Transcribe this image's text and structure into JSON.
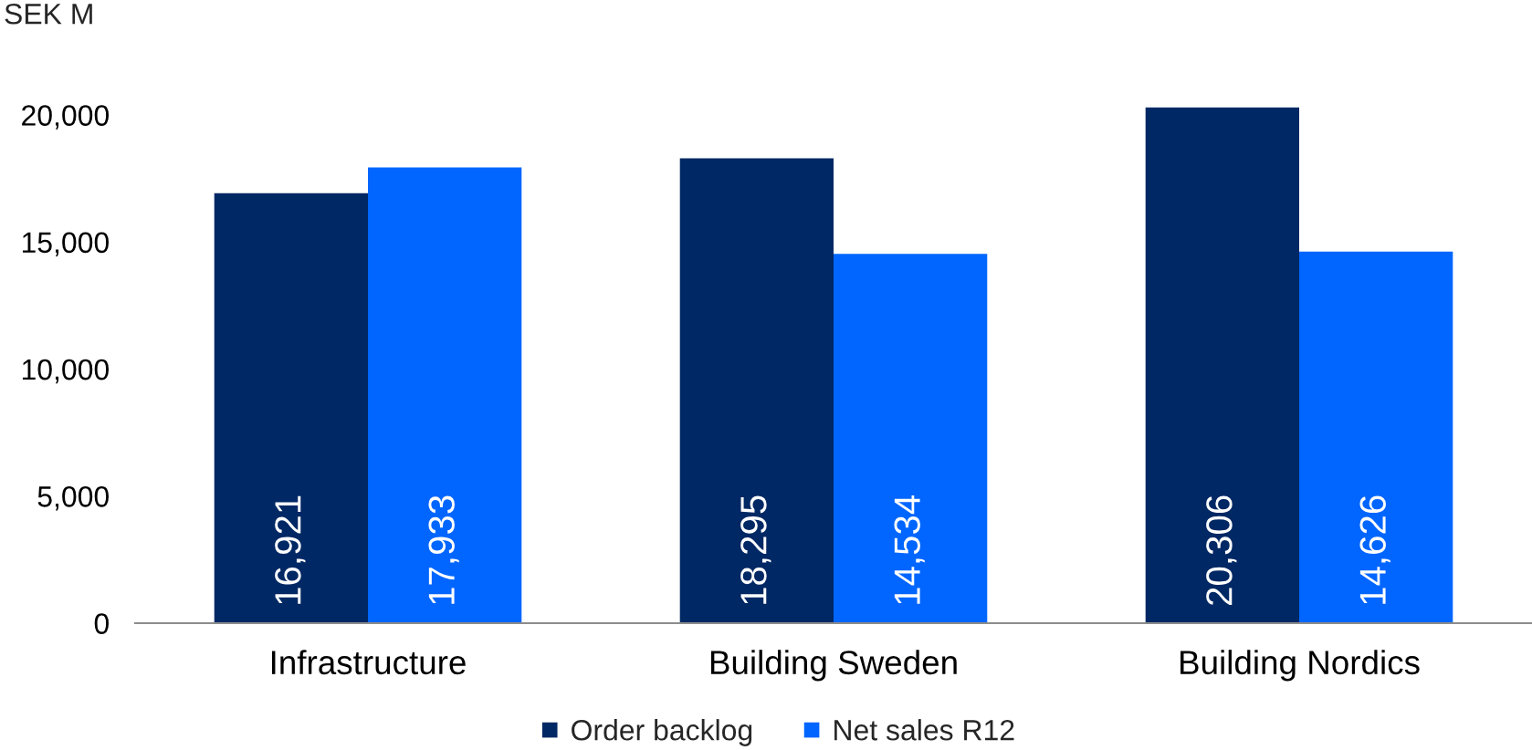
{
  "chart_data": {
    "type": "bar",
    "ylabel": "SEK M",
    "categories": [
      "Infrastructure",
      "Building Sweden",
      "Building Nordics"
    ],
    "series": [
      {
        "name": "Order backlog",
        "color": "#002864",
        "values": [
          16921,
          18295,
          20306
        ],
        "value_labels": [
          "16,921",
          "18,295",
          "20,306"
        ]
      },
      {
        "name": "Net sales R12",
        "color": "#0066ff",
        "values": [
          17933,
          14534,
          14626
        ],
        "value_labels": [
          "17,933",
          "14,534",
          "14,626"
        ]
      }
    ],
    "ylim": [
      0,
      20306
    ],
    "yticks": [
      {
        "value": 0,
        "label": "0"
      },
      {
        "value": 5000,
        "label": "5,000"
      },
      {
        "value": 10000,
        "label": "10,000"
      },
      {
        "value": 15000,
        "label": "15,000"
      },
      {
        "value": 20000,
        "label": "20,000"
      }
    ],
    "legend": "bottom"
  }
}
